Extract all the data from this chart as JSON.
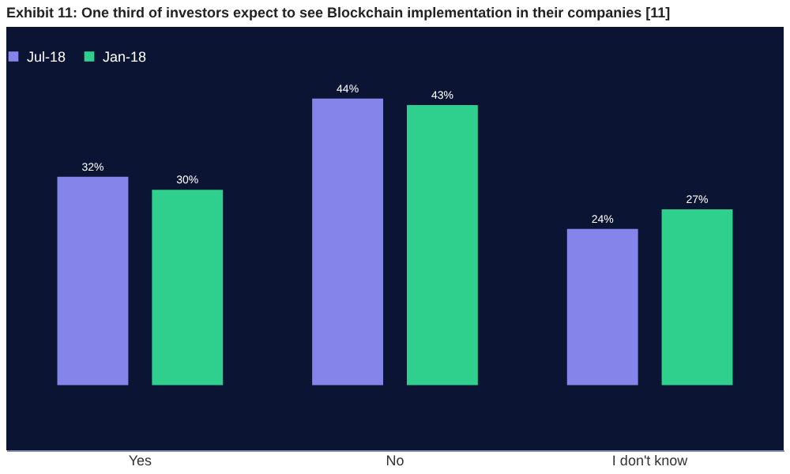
{
  "chart_data": {
    "type": "bar",
    "title": "Exhibit 11: One third of investors expect to see Blockchain implementation in their companies [11]",
    "categories": [
      "Yes",
      "No",
      "I don't know"
    ],
    "series": [
      {
        "name": "Jul-18",
        "color": "#8584ea",
        "values": [
          32,
          44,
          24
        ],
        "value_labels": [
          "32%",
          "44%",
          "24%"
        ]
      },
      {
        "name": "Jan-18",
        "color": "#2fcf8d",
        "values": [
          30,
          43,
          27
        ],
        "value_labels": [
          "30%",
          "43%",
          "27%"
        ]
      }
    ],
    "legend": "top"
  }
}
